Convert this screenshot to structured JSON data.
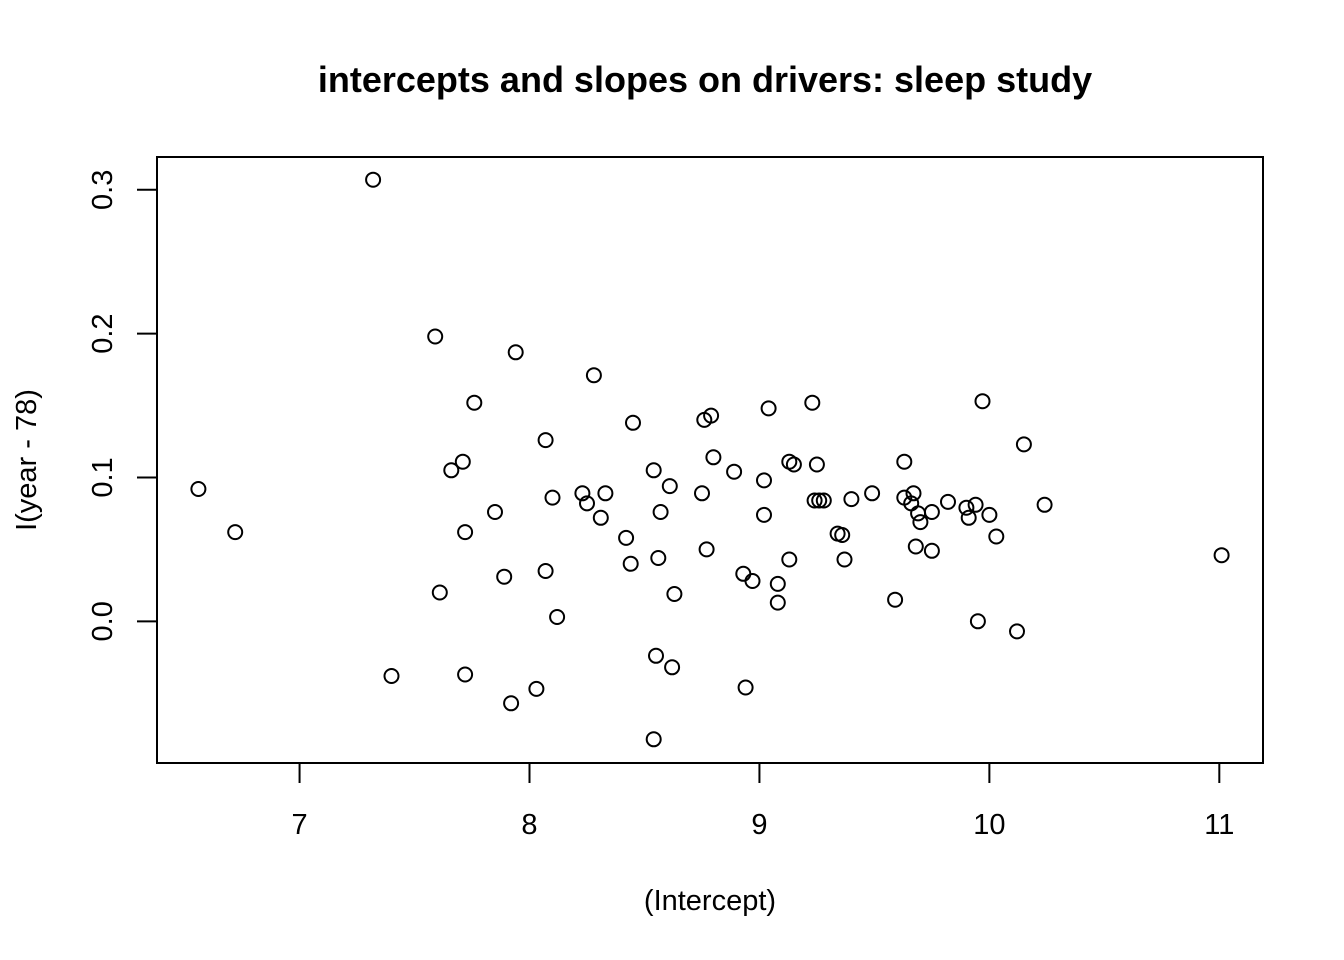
{
  "chart_data": {
    "type": "scatter",
    "title": "intercepts and slopes on drivers: sleep study",
    "xlabel": "(Intercept)",
    "ylabel": "I(year - 78)",
    "xlim": [
      6.38,
      11.19
    ],
    "ylim": [
      -0.0985,
      0.3228
    ],
    "x_ticks": [
      7,
      8,
      9,
      10,
      11
    ],
    "x_tick_labels": [
      "7",
      "8",
      "9",
      "10",
      "11"
    ],
    "y_ticks": [
      0.0,
      0.1,
      0.2,
      0.3
    ],
    "y_tick_labels": [
      "0.0",
      "0.1",
      "0.2",
      "0.3"
    ],
    "grid": false,
    "legend": "none",
    "points": [
      [
        6.56,
        0.092
      ],
      [
        6.72,
        0.062
      ],
      [
        7.32,
        0.307
      ],
      [
        7.4,
        -0.038
      ],
      [
        7.59,
        0.198
      ],
      [
        7.61,
        0.02
      ],
      [
        7.66,
        0.105
      ],
      [
        7.71,
        0.111
      ],
      [
        7.72,
        0.062
      ],
      [
        7.72,
        -0.037
      ],
      [
        7.76,
        0.152
      ],
      [
        7.85,
        0.076
      ],
      [
        7.89,
        0.031
      ],
      [
        7.92,
        -0.057
      ],
      [
        7.94,
        0.187
      ],
      [
        8.03,
        -0.047
      ],
      [
        8.07,
        0.126
      ],
      [
        8.07,
        0.035
      ],
      [
        8.1,
        0.086
      ],
      [
        8.12,
        0.003
      ],
      [
        8.23,
        0.089
      ],
      [
        8.25,
        0.082
      ],
      [
        8.28,
        0.171
      ],
      [
        8.31,
        0.072
      ],
      [
        8.33,
        0.089
      ],
      [
        8.42,
        0.058
      ],
      [
        8.44,
        0.04
      ],
      [
        8.45,
        0.138
      ],
      [
        8.54,
        0.105
      ],
      [
        8.54,
        -0.082
      ],
      [
        8.55,
        -0.024
      ],
      [
        8.56,
        0.044
      ],
      [
        8.57,
        0.076
      ],
      [
        8.61,
        0.094
      ],
      [
        8.62,
        -0.032
      ],
      [
        8.63,
        0.019
      ],
      [
        8.75,
        0.089
      ],
      [
        8.76,
        0.14
      ],
      [
        8.77,
        0.05
      ],
      [
        8.79,
        0.143
      ],
      [
        8.8,
        0.114
      ],
      [
        8.89,
        0.104
      ],
      [
        8.93,
        0.033
      ],
      [
        8.94,
        -0.046
      ],
      [
        8.97,
        0.028
      ],
      [
        9.02,
        0.098
      ],
      [
        9.02,
        0.074
      ],
      [
        9.04,
        0.148
      ],
      [
        9.08,
        0.026
      ],
      [
        9.08,
        0.013
      ],
      [
        9.13,
        0.111
      ],
      [
        9.13,
        0.043
      ],
      [
        9.15,
        0.109
      ],
      [
        9.23,
        0.152
      ],
      [
        9.24,
        0.084
      ],
      [
        9.25,
        0.109
      ],
      [
        9.26,
        0.084
      ],
      [
        9.28,
        0.084
      ],
      [
        9.34,
        0.061
      ],
      [
        9.36,
        0.06
      ],
      [
        9.37,
        0.043
      ],
      [
        9.4,
        0.085
      ],
      [
        9.49,
        0.089
      ],
      [
        9.59,
        0.015
      ],
      [
        9.63,
        0.111
      ],
      [
        9.63,
        0.086
      ],
      [
        9.66,
        0.082
      ],
      [
        9.67,
        0.089
      ],
      [
        9.68,
        0.052
      ],
      [
        9.69,
        0.075
      ],
      [
        9.7,
        0.069
      ],
      [
        9.75,
        0.076
      ],
      [
        9.75,
        0.049
      ],
      [
        9.82,
        0.083
      ],
      [
        9.9,
        0.079
      ],
      [
        9.91,
        0.072
      ],
      [
        9.94,
        0.081
      ],
      [
        9.95,
        0.0
      ],
      [
        9.97,
        0.153
      ],
      [
        10.0,
        0.074
      ],
      [
        10.03,
        0.059
      ],
      [
        10.12,
        -0.007
      ],
      [
        10.15,
        0.123
      ],
      [
        10.24,
        0.081
      ],
      [
        11.01,
        0.046
      ]
    ]
  }
}
